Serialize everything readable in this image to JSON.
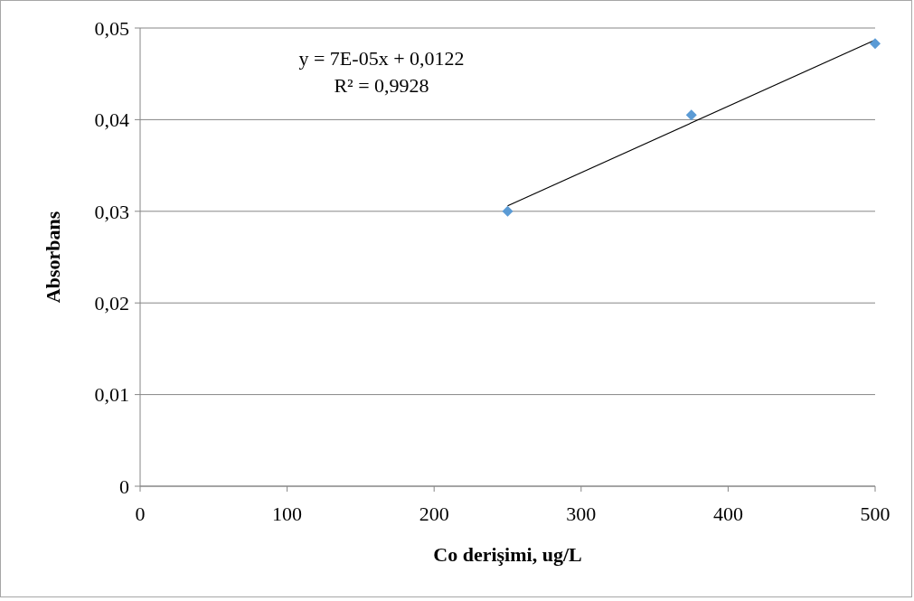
{
  "chart_data": {
    "type": "scatter",
    "xlabel": "Co derişimi, ug/L",
    "ylabel": "Absorbans",
    "xlim": [
      0,
      500
    ],
    "xticks": [
      0,
      100,
      200,
      300,
      400,
      500
    ],
    "ylim": [
      0,
      0.05
    ],
    "yticks": [
      {
        "value": 0,
        "label": "0"
      },
      {
        "value": 0.01,
        "label": "0,01"
      },
      {
        "value": 0.02,
        "label": "0,02"
      },
      {
        "value": 0.03,
        "label": "0,03"
      },
      {
        "value": 0.04,
        "label": "0,04"
      },
      {
        "value": 0.05,
        "label": "0,05"
      }
    ],
    "grid": "y",
    "marker": "diamond",
    "annotations": [
      "y = 7E-05x + 0,0122",
      "R² = 0,9928"
    ],
    "series": [
      {
        "color": "#5b9bd5",
        "x": [
          250,
          375,
          500
        ],
        "values": [
          0.03,
          0.0405,
          0.0483
        ]
      },
      {
        "type": "line",
        "color": "#000000",
        "marker": "none",
        "x": [
          250,
          500
        ],
        "values": [
          0.0306,
          0.0487
        ]
      }
    ]
  }
}
